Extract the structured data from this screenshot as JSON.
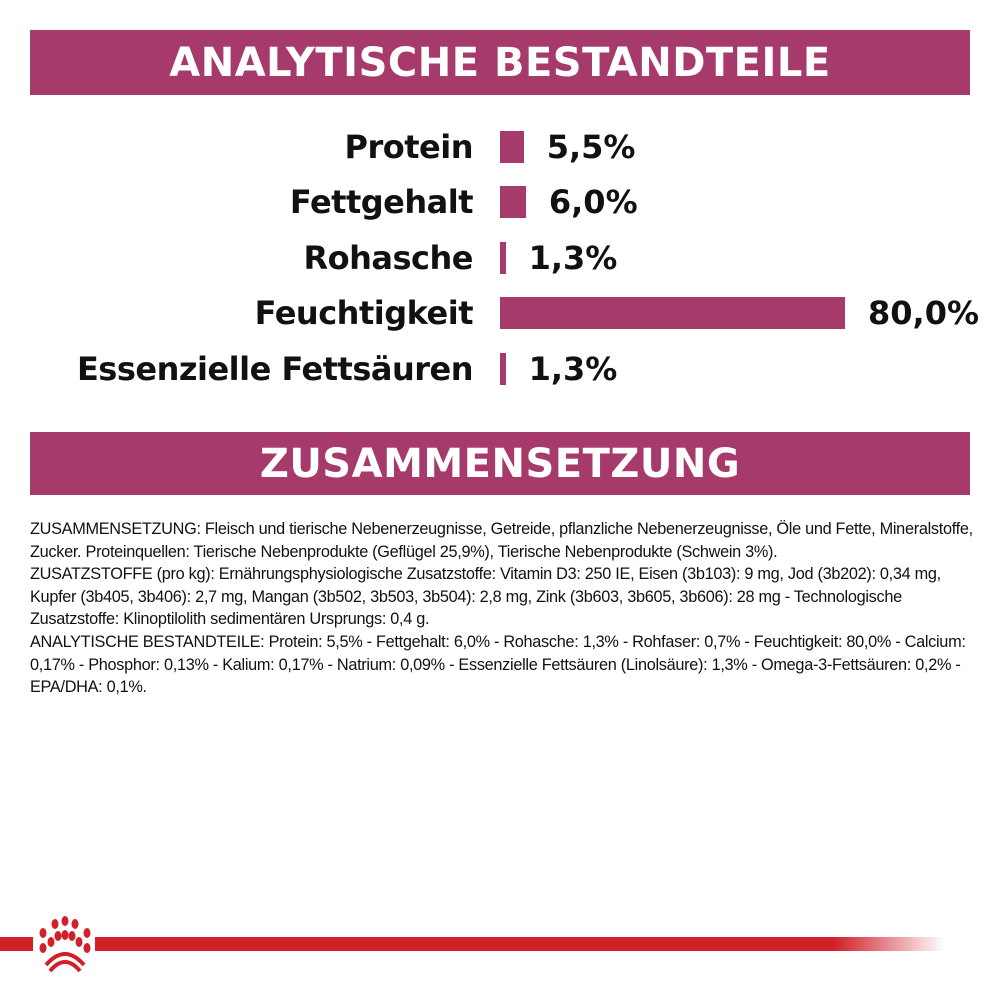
{
  "sections": {
    "analysis_title": "ANALYTISCHE BESTANDTEILE",
    "composition_title": "ZUSAMMENSETZUNG"
  },
  "nutrients": [
    {
      "label": "Protein",
      "value": "5,5%",
      "percent": 5.5
    },
    {
      "label": "Fettgehalt",
      "value": "6,0%",
      "percent": 6.0
    },
    {
      "label": "Rohasche",
      "value": "1,3%",
      "percent": 1.3
    },
    {
      "label": "Feuchtigkeit",
      "value": "80,0%",
      "percent": 80.0
    },
    {
      "label": "Essenzielle Fettsäuren",
      "value": "1,3%",
      "percent": 1.3
    }
  ],
  "composition": [
    "ZUSAMMENSETZUNG: Fleisch und tierische Nebenerzeugnisse, Getreide, pflanzliche Nebenerzeugnisse, Öle und Fette, Mineralstoffe, Zucker. Proteinquellen: Tierische Nebenprodukte (Geflügel 25,9%), Tierische Nebenprodukte (Schwein 3%).",
    "ZUSATZSTOFFE (pro kg): Ernährungsphysiologische Zusatzstoffe: Vitamin D3: 250 IE, Eisen (3b103): 9 mg, Jod (3b202): 0,34 mg, Kupfer (3b405, 3b406): 2,7 mg, Mangan (3b502, 3b503, 3b504): 2,8 mg, Zink (3b603, 3b605, 3b606): 28 mg - Technologische Zusatzstoffe: Klinoptilolith sedimentären Ursprungs: 0,4 g.",
    "ANALYTISCHE BESTANDTEILE: Protein: 5,5% - Fettgehalt: 6,0% - Rohasche: 1,3% - Rohfaser: 0,7% - Feuchtigkeit: 80,0% - Calcium: 0,17% - Phosphor: 0,13% - Kalium: 0,17% - Natrium: 0,09% - Essenzielle Fettsäuren (Linolsäure): 1,3% - Omega-3-Fettsäuren: 0,2% - EPA/DHA: 0,1%."
  ],
  "colors": {
    "accent": "#a63a6a",
    "brand_red": "#d2202a"
  },
  "logo": {
    "icon": "royal-canin-crown-icon"
  }
}
